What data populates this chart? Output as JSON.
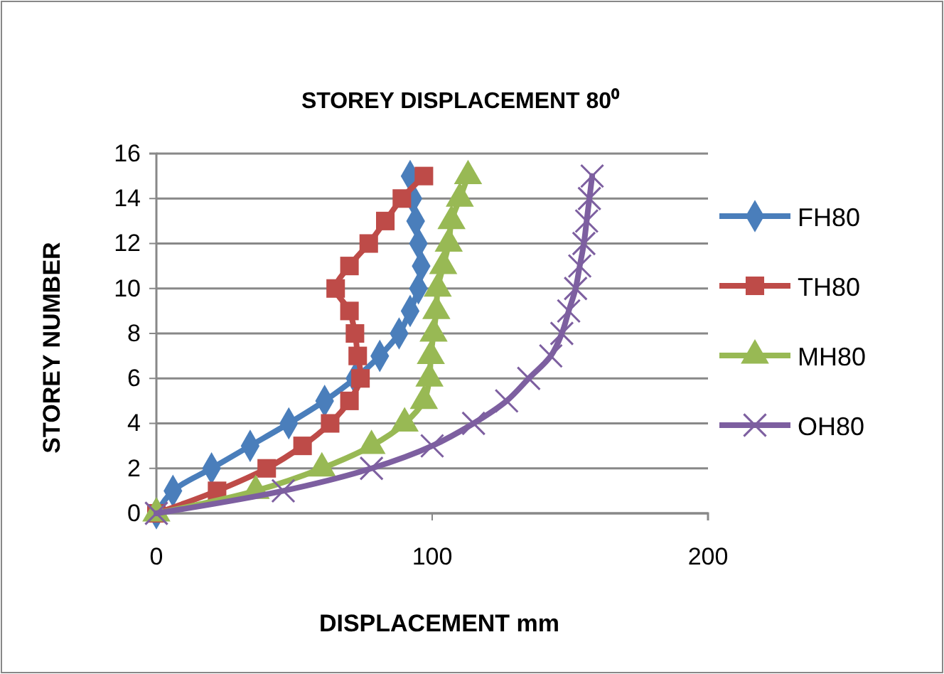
{
  "chart_data": {
    "type": "line",
    "title": "STOREY DISPLACEMENT 80⁰",
    "xlabel": "DISPLACEMENT mm",
    "ylabel": "STOREY NUMBER",
    "xlim": [
      0,
      200
    ],
    "xticks": [
      0,
      100,
      200
    ],
    "ylim": [
      0,
      16
    ],
    "yticks": [
      0,
      2,
      4,
      6,
      8,
      10,
      12,
      14,
      16
    ],
    "grid": "y",
    "legend": "right",
    "series": [
      {
        "name": "FH80",
        "color": "#4a7ebb",
        "marker": "diamond",
        "x": [
          0,
          6,
          20,
          34,
          48,
          61,
          72,
          81,
          88,
          92,
          95,
          96,
          95,
          94,
          93,
          92
        ],
        "values": [
          0,
          1,
          2,
          3,
          4,
          5,
          6,
          7,
          8,
          9,
          10,
          11,
          12,
          13,
          14,
          15
        ]
      },
      {
        "name": "TH80",
        "color": "#be4b48",
        "marker": "square",
        "x": [
          0,
          22,
          40,
          53,
          63,
          70,
          74,
          73,
          72,
          70,
          65,
          70,
          77,
          83,
          89,
          97
        ],
        "values": [
          0,
          1,
          2,
          3,
          4,
          5,
          6,
          7,
          8,
          9,
          10,
          11,
          12,
          13,
          14,
          15
        ]
      },
      {
        "name": "MH80",
        "color": "#98b954",
        "marker": "triangle",
        "x": [
          0,
          36,
          60,
          78,
          90,
          97,
          99,
          99.5,
          100.5,
          101.5,
          102,
          104,
          106,
          107,
          110,
          113
        ],
        "values": [
          0,
          1,
          2,
          3,
          4,
          5,
          6,
          7,
          8,
          9,
          10,
          11,
          12,
          13,
          14,
          15
        ]
      },
      {
        "name": "OH80",
        "color": "#7d5fa0",
        "marker": "cross",
        "x": [
          0,
          46,
          78,
          100,
          115,
          127,
          135,
          143,
          147,
          149.5,
          152,
          153.5,
          155,
          156,
          157,
          158
        ],
        "values": [
          0,
          1,
          2,
          3,
          4,
          5,
          6,
          7,
          8,
          9,
          10,
          11,
          12,
          13,
          14,
          15
        ]
      }
    ]
  }
}
